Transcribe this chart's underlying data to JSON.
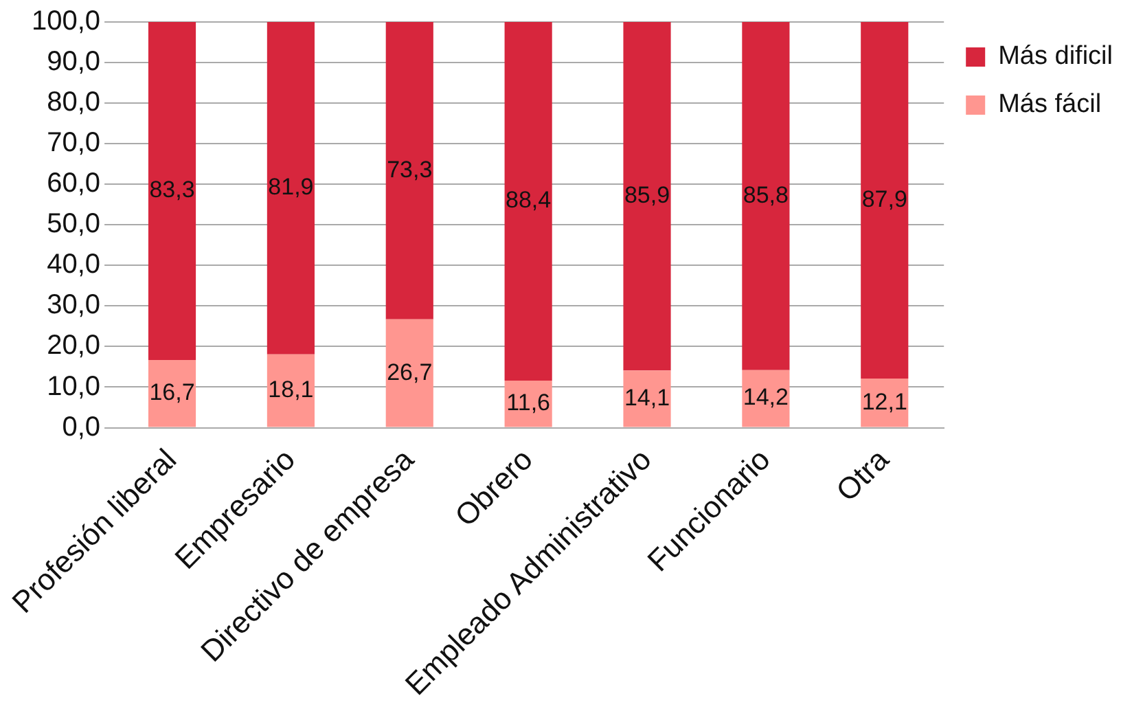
{
  "chart_data": {
    "type": "bar",
    "stacked": true,
    "categories": [
      "Profesión liberal",
      "Empresario",
      "Directivo de empresa",
      "Obrero",
      "Empleado Administrativo",
      "Funcionario",
      "Otra"
    ],
    "series": [
      {
        "name": "Más fácil",
        "color": "#ff9690",
        "values": [
          16.7,
          18.1,
          26.7,
          11.6,
          14.1,
          14.2,
          12.1
        ],
        "value_labels": [
          "16,7",
          "18,1",
          "26,7",
          "11,6",
          "14,1",
          "14,2",
          "12,1"
        ]
      },
      {
        "name": "Más dificil",
        "color": "#d7263d",
        "values": [
          83.3,
          81.9,
          73.3,
          88.4,
          85.9,
          85.8,
          87.9
        ],
        "value_labels": [
          "83,3",
          "81,9",
          "73,3",
          "88,4",
          "85,9",
          "85,8",
          "87,9"
        ]
      }
    ],
    "ylim": [
      0,
      100
    ],
    "yticks": [
      {
        "value": 0,
        "label": "0,0"
      },
      {
        "value": 10,
        "label": "10,0"
      },
      {
        "value": 20,
        "label": "20,0"
      },
      {
        "value": 30,
        "label": "30,0"
      },
      {
        "value": 40,
        "label": "40,0"
      },
      {
        "value": 50,
        "label": "50,0"
      },
      {
        "value": 60,
        "label": "60,0"
      },
      {
        "value": 70,
        "label": "70,0"
      },
      {
        "value": 80,
        "label": "80,0"
      },
      {
        "value": 90,
        "label": "90,0"
      },
      {
        "value": 100,
        "label": "100,0"
      }
    ],
    "grid": "y",
    "legend": "top right"
  }
}
